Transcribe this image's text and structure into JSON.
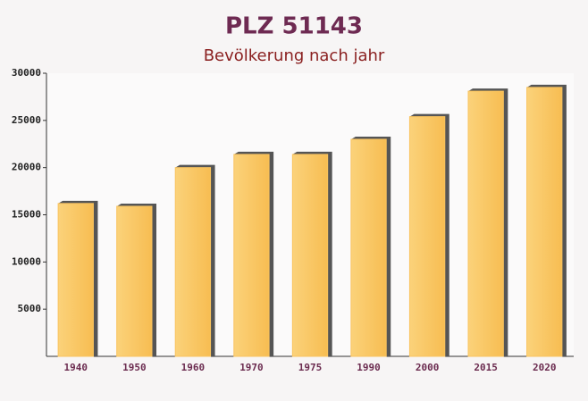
{
  "chart_data": {
    "type": "bar",
    "title": "PLZ 51143",
    "subtitle": "Bevölkerung nach jahr",
    "categories": [
      "1940",
      "1950",
      "1960",
      "1970",
      "1975",
      "1990",
      "2000",
      "2015",
      "2020"
    ],
    "values": [
      16200,
      15900,
      20000,
      21400,
      21400,
      23000,
      25400,
      28100,
      28500
    ],
    "color": "#f9c35f",
    "ylim": [
      0,
      30000
    ],
    "yticks": [
      5000,
      10000,
      15000,
      20000,
      25000,
      30000
    ],
    "grid": false
  }
}
